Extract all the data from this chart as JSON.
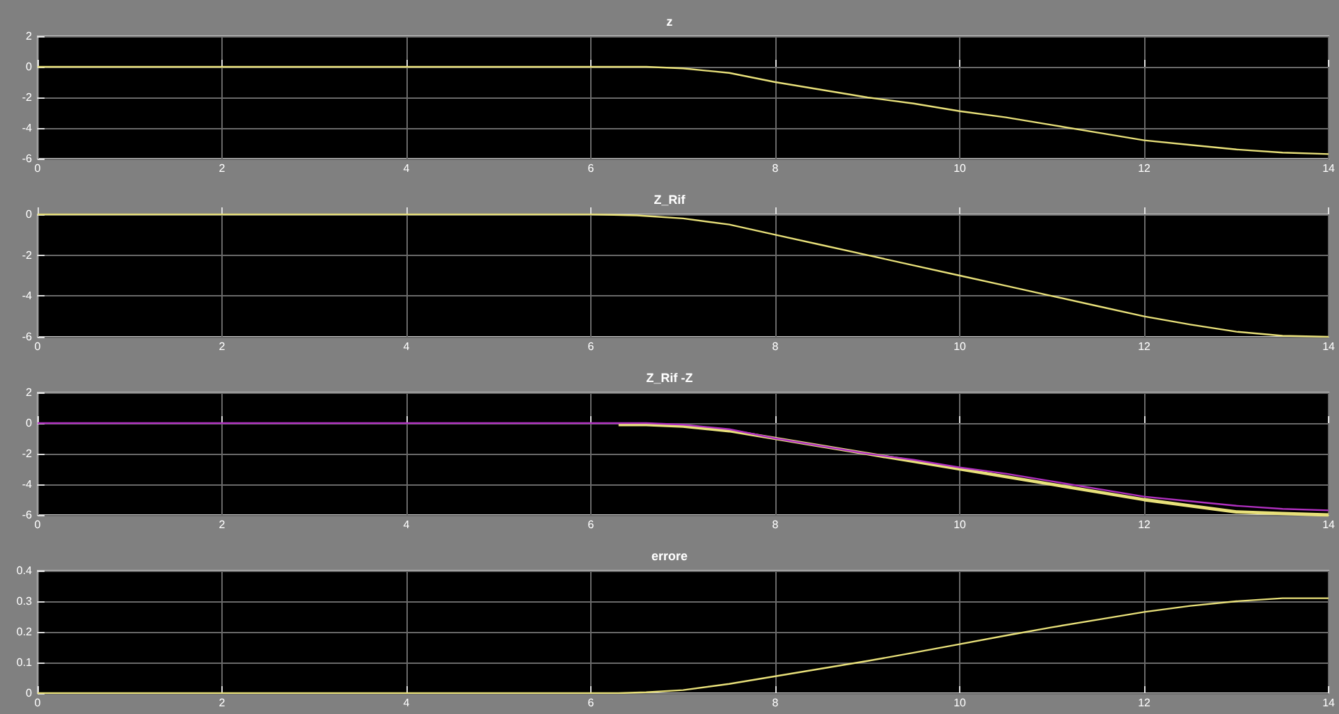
{
  "chart_data": [
    {
      "type": "line",
      "title": "z",
      "x": [
        0,
        2,
        4,
        6,
        6.3,
        6.6,
        7,
        7.5,
        8,
        8.5,
        9,
        9.5,
        10,
        10.5,
        11,
        11.5,
        12,
        12.5,
        13,
        13.5,
        14
      ],
      "series": [
        {
          "color": "#e8e07a",
          "values": [
            0,
            0,
            0,
            0,
            0,
            0,
            -0.1,
            -0.4,
            -1,
            -1.5,
            -2,
            -2.4,
            -2.9,
            -3.3,
            -3.8,
            -4.3,
            -4.8,
            -5.1,
            -5.4,
            -5.6,
            -5.7
          ]
        }
      ],
      "xlim": [
        0,
        14
      ],
      "xticks": [
        0,
        2,
        4,
        6,
        8,
        10,
        12,
        14
      ],
      "ylim": [
        -6,
        2
      ],
      "yticks": [
        -6,
        -4,
        -2,
        0,
        2
      ],
      "grid": true,
      "marker": "none",
      "line_style": "solid"
    },
    {
      "type": "line",
      "title": "Z_Rif",
      "x": [
        0,
        2,
        4,
        6,
        6.5,
        7,
        7.5,
        8,
        8.5,
        9,
        9.5,
        10,
        10.5,
        11,
        11.5,
        12,
        12.5,
        13,
        13.5,
        14
      ],
      "series": [
        {
          "color": "#e8e07a",
          "values": [
            0,
            0,
            0,
            0,
            -0.05,
            -0.2,
            -0.5,
            -1,
            -1.5,
            -2,
            -2.5,
            -3,
            -3.5,
            -4,
            -4.5,
            -5,
            -5.4,
            -5.75,
            -5.95,
            -6
          ]
        }
      ],
      "xlim": [
        0,
        14
      ],
      "xticks": [
        0,
        2,
        4,
        6,
        8,
        10,
        12,
        14
      ],
      "ylim": [
        -6,
        0
      ],
      "yticks": [
        -6,
        -4,
        -2,
        0
      ],
      "grid": true,
      "marker": "none",
      "line_style": "solid"
    },
    {
      "type": "line",
      "title": "Z_Rif -Z",
      "x": [
        0,
        2,
        4,
        6,
        6.3,
        6.6,
        7,
        7.5,
        8,
        8.5,
        9,
        9.5,
        10,
        10.5,
        11,
        11.5,
        12,
        12.5,
        13,
        13.5,
        14
      ],
      "series": [
        {
          "color": "#e8e07a",
          "values": [
            null,
            null,
            null,
            null,
            -0.1,
            -0.1,
            -0.2,
            -0.5,
            -1,
            -1.5,
            -2,
            -2.5,
            -3,
            -3.5,
            -4,
            -4.5,
            -5,
            -5.4,
            -5.8,
            -5.9,
            -6
          ]
        },
        {
          "color": "#b030c0",
          "values": [
            0,
            0,
            0,
            0,
            0,
            0,
            -0.1,
            -0.4,
            -1,
            -1.5,
            -2,
            -2.4,
            -2.9,
            -3.3,
            -3.8,
            -4.3,
            -4.8,
            -5.1,
            -5.4,
            -5.6,
            -5.7
          ]
        }
      ],
      "xlim": [
        0,
        14
      ],
      "xticks": [
        0,
        2,
        4,
        6,
        8,
        10,
        12,
        14
      ],
      "ylim": [
        -6,
        2
      ],
      "yticks": [
        -6,
        -4,
        -2,
        0,
        2
      ],
      "grid": true,
      "marker": "none",
      "line_style": "solid"
    },
    {
      "type": "line",
      "title": "errore",
      "x": [
        0,
        2,
        4,
        6,
        6.3,
        6.6,
        7,
        7.5,
        8,
        8.5,
        9,
        9.5,
        10,
        10.5,
        11,
        11.5,
        12,
        12.5,
        13,
        13.5,
        14
      ],
      "series": [
        {
          "color": "#e8e07a",
          "values": [
            0,
            0,
            0,
            0,
            0,
            0.003,
            0.01,
            0.03,
            0.055,
            0.08,
            0.105,
            0.132,
            0.16,
            0.188,
            0.215,
            0.24,
            0.265,
            0.285,
            0.3,
            0.31,
            0.31
          ]
        }
      ],
      "xlim": [
        0,
        14
      ],
      "xticks": [
        0,
        2,
        4,
        6,
        8,
        10,
        12,
        14
      ],
      "ylim": [
        0,
        0.4
      ],
      "yticks": [
        0,
        0.1,
        0.2,
        0.3,
        0.4
      ],
      "grid": true,
      "marker": "none",
      "line_style": "solid"
    }
  ]
}
